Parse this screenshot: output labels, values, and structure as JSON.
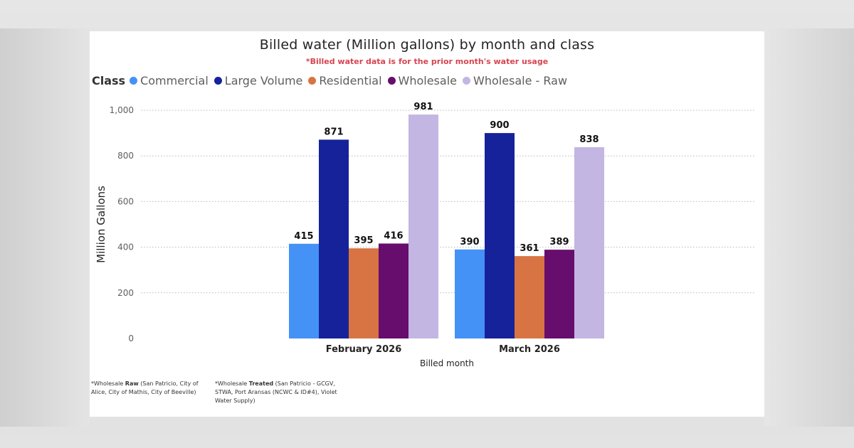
{
  "chart_data": {
    "type": "bar",
    "title": "Billed water (Million gallons) by month and class",
    "subtitle": "*Billed water data is for the prior month's water usage",
    "legend_title": "Class",
    "legend_position": "top-left",
    "xlabel": "Billed month",
    "ylabel": "Million Gallons",
    "ylim": [
      0,
      1000
    ],
    "yticks": [
      "0",
      "200",
      "400",
      "600",
      "800",
      "1,000"
    ],
    "ytick_values": [
      0,
      200,
      400,
      600,
      800,
      1000
    ],
    "grid": true,
    "categories": [
      "February 2026",
      "March 2026"
    ],
    "series": [
      {
        "name": "Commercial",
        "color": "#4592f7",
        "values": [
          415,
          390
        ]
      },
      {
        "name": "Large Volume",
        "color": "#16229a",
        "values": [
          871,
          900
        ]
      },
      {
        "name": "Residential",
        "color": "#d87444",
        "values": [
          395,
          361
        ]
      },
      {
        "name": "Wholesale",
        "color": "#660d6e",
        "values": [
          416,
          389
        ]
      },
      {
        "name": "Wholesale - Raw",
        "color": "#c3b6e2",
        "values": [
          981,
          838
        ]
      }
    ]
  },
  "notes": {
    "raw": {
      "prefix": "*Wholesale ",
      "bold": "Raw",
      "text": " (San Patricio, City of Alice, City of Mathis, City of Beeville)"
    },
    "treated": {
      "prefix": "*Wholesale ",
      "bold": "Treated",
      "text": " (San Patricio - GCGV, STWA, Port Aransas (NCWC & ID#4), Violet Water Supply)"
    }
  }
}
